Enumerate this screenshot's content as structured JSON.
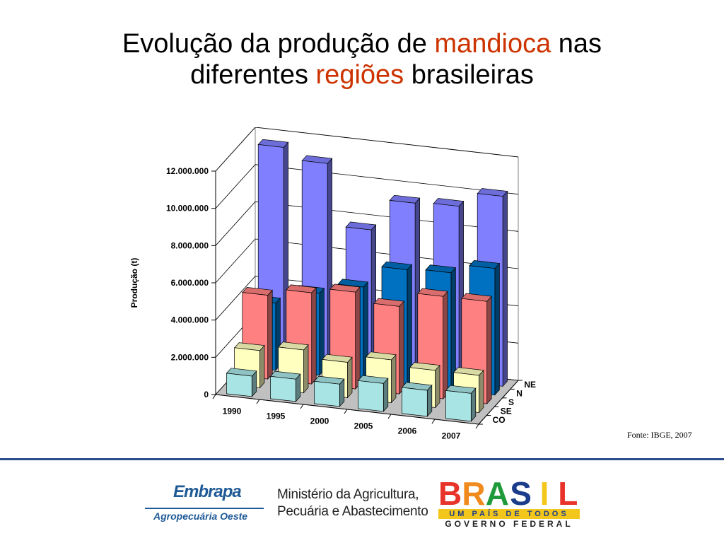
{
  "title": {
    "line1_a": "Evolução da produção de ",
    "line1_b": "mandioca",
    "line1_c": " nas",
    "line2_a": "diferentes ",
    "line2_b": "regiões",
    "line2_c": " brasileiras"
  },
  "source": "Fonte: IBGE, 2007",
  "footer": {
    "embrapa_name": "Embrapa",
    "embrapa_sub": "Agropecuária Oeste",
    "ministry_line1": "Ministério da Agricultura,",
    "ministry_line2": "Pecuária e Abastecimento",
    "brasil_letters": [
      "B",
      "R",
      "A",
      "S",
      "I",
      "L"
    ],
    "brasil_tagline": "UM PAÍS DE TODOS",
    "brasil_gov": "GOVERNO FEDERAL"
  },
  "chart_data": {
    "type": "bar",
    "subtype": "3d-column",
    "title": "",
    "ylabel": "Produção (t)",
    "ylim": [
      0,
      12000000
    ],
    "yticks": [
      "0",
      "2.000.000",
      "4.000.000",
      "6.000.000",
      "8.000.000",
      "10.000.000",
      "12.000.000"
    ],
    "categories": [
      "1990",
      "1995",
      "2000",
      "2005",
      "2006",
      "2007"
    ],
    "series": [
      {
        "name": "CO",
        "color": "#a8e4e4",
        "values": [
          1100000,
          1200000,
          1200000,
          1500000,
          1400000,
          1500000
        ]
      },
      {
        "name": "SE",
        "color": "#ffffc0",
        "values": [
          2000000,
          2300000,
          1900000,
          2300000,
          2000000,
          2000000
        ]
      },
      {
        "name": "S",
        "color": "#ff8080",
        "values": [
          4500000,
          4900000,
          5200000,
          4700000,
          5500000,
          5500000
        ]
      },
      {
        "name": "N",
        "color": "#0070c0",
        "values": [
          3600000,
          4400000,
          5000000,
          6200000,
          6300000,
          6800000
        ]
      },
      {
        "name": "NE",
        "color": "#8080ff",
        "values": [
          11500000,
          10900000,
          7600000,
          9300000,
          9400000,
          10200000
        ]
      }
    ],
    "grid": true,
    "legend": "none (series labels on depth axis)"
  }
}
